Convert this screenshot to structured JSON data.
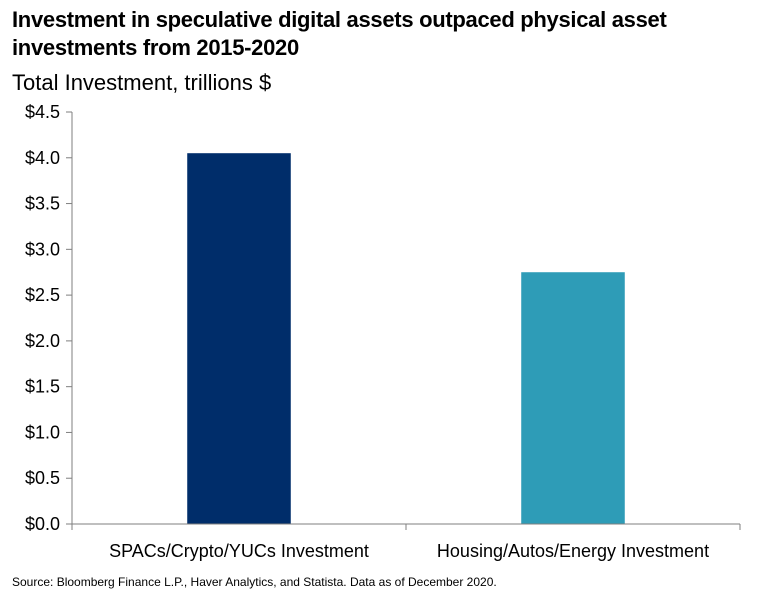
{
  "title": "Investment in speculative digital assets outpaced physical asset investments from 2015-2020",
  "subtitle": "Total Investment, trillions $",
  "source": "Source: Bloomberg Finance L.P., Haver Analytics, and Statista. Data as of December 2020.",
  "chart_data": {
    "type": "bar",
    "title": "Investment in speculative digital assets outpaced physical asset investments from 2015-2020",
    "subtitle": "Total Investment, trillions $",
    "categories": [
      "SPACs/Crypto/YUCs Investment",
      "Housing/Autos/Energy Investment"
    ],
    "values": [
      4.05,
      2.75
    ],
    "colors": [
      "#002d6a",
      "#2e9cb7"
    ],
    "ylim": [
      0,
      4.5
    ],
    "yticks": [
      0,
      0.5,
      1.0,
      1.5,
      2.0,
      2.5,
      3.0,
      3.5,
      4.0,
      4.5
    ],
    "ytick_labels": [
      "$0.0",
      "$0.5",
      "$1.0",
      "$1.5",
      "$2.0",
      "$2.5",
      "$3.0",
      "$3.5",
      "$4.0",
      "$4.5"
    ],
    "xlabel": "",
    "ylabel": "",
    "grid": false,
    "legend": "none"
  }
}
